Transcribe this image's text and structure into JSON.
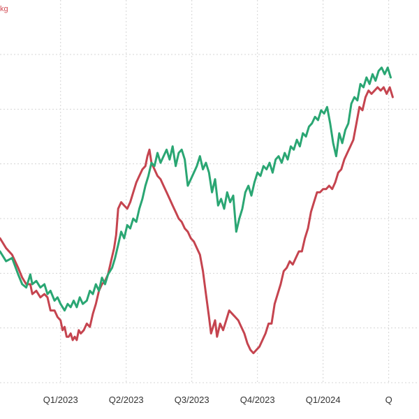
{
  "chart_data": {
    "type": "line",
    "unit_label": "kg",
    "grid": true,
    "y_gridline_count": 7,
    "x_ticks": [
      "Q1/2023",
      "Q2/2023",
      "Q3/2023",
      "Q4/2023",
      "Q1/2024",
      "Q"
    ],
    "x_range": [
      -60,
      355
    ],
    "y_range": [
      0,
      100
    ],
    "colors": {
      "green": "#2aa673",
      "red": "#c5444f",
      "unit": "#d24b54",
      "grid": "#d4d4d4"
    },
    "series": [
      {
        "color": "green",
        "points": [
          [
            -60,
            40
          ],
          [
            -54,
            37
          ],
          [
            -48,
            38
          ],
          [
            -42,
            33
          ],
          [
            -38,
            30
          ],
          [
            -34,
            29
          ],
          [
            -30,
            33
          ],
          [
            -28,
            30
          ],
          [
            -24,
            31
          ],
          [
            -20,
            29
          ],
          [
            -16,
            30
          ],
          [
            -13,
            27
          ],
          [
            -10,
            28
          ],
          [
            -6,
            25
          ],
          [
            -3,
            26
          ],
          [
            0,
            24
          ],
          [
            4,
            22
          ],
          [
            7,
            24
          ],
          [
            10,
            23
          ],
          [
            13,
            25
          ],
          [
            16,
            23
          ],
          [
            19,
            26
          ],
          [
            22,
            24
          ],
          [
            26,
            25
          ],
          [
            29,
            28
          ],
          [
            32,
            27
          ],
          [
            35,
            30
          ],
          [
            38,
            28
          ],
          [
            41,
            32
          ],
          [
            44,
            30
          ],
          [
            47,
            33
          ],
          [
            51,
            35
          ],
          [
            54,
            38
          ],
          [
            57,
            42
          ],
          [
            60,
            46
          ],
          [
            63,
            44
          ],
          [
            66,
            48
          ],
          [
            69,
            47
          ],
          [
            72,
            50
          ],
          [
            75,
            49
          ],
          [
            78,
            53
          ],
          [
            81,
            56
          ],
          [
            84,
            60
          ],
          [
            87,
            63
          ],
          [
            90,
            67
          ],
          [
            93,
            66
          ],
          [
            96,
            70
          ],
          [
            99,
            67
          ],
          [
            102,
            69
          ],
          [
            105,
            71
          ],
          [
            108,
            68
          ],
          [
            111,
            72
          ],
          [
            114,
            66
          ],
          [
            117,
            70
          ],
          [
            120,
            71
          ],
          [
            123,
            68
          ],
          [
            126,
            60
          ],
          [
            129,
            62
          ],
          [
            132,
            64
          ],
          [
            135,
            66
          ],
          [
            138,
            69
          ],
          [
            141,
            65
          ],
          [
            144,
            67
          ],
          [
            147,
            64
          ],
          [
            150,
            58
          ],
          [
            153,
            62
          ],
          [
            156,
            54
          ],
          [
            159,
            56
          ],
          [
            162,
            53
          ],
          [
            165,
            58
          ],
          [
            168,
            55
          ],
          [
            171,
            57
          ],
          [
            174,
            46
          ],
          [
            177,
            50
          ],
          [
            180,
            53
          ],
          [
            183,
            58
          ],
          [
            186,
            60
          ],
          [
            189,
            57
          ],
          [
            192,
            61
          ],
          [
            195,
            64
          ],
          [
            198,
            63
          ],
          [
            201,
            66
          ],
          [
            204,
            65
          ],
          [
            207,
            67
          ],
          [
            210,
            64
          ],
          [
            213,
            68
          ],
          [
            216,
            69
          ],
          [
            219,
            67
          ],
          [
            222,
            70
          ],
          [
            225,
            68
          ],
          [
            228,
            72
          ],
          [
            231,
            71
          ],
          [
            234,
            74
          ],
          [
            237,
            72
          ],
          [
            240,
            76
          ],
          [
            243,
            75
          ],
          [
            246,
            78
          ],
          [
            249,
            79
          ],
          [
            252,
            81
          ],
          [
            255,
            80
          ],
          [
            258,
            83
          ],
          [
            261,
            82
          ],
          [
            264,
            84
          ],
          [
            267,
            79
          ],
          [
            270,
            73
          ],
          [
            273,
            69
          ],
          [
            276,
            76
          ],
          [
            279,
            73
          ],
          [
            282,
            77
          ],
          [
            285,
            79
          ],
          [
            288,
            85
          ],
          [
            291,
            87
          ],
          [
            294,
            86
          ],
          [
            297,
            91
          ],
          [
            300,
            90
          ],
          [
            303,
            93
          ],
          [
            306,
            91
          ],
          [
            309,
            94
          ],
          [
            312,
            92
          ],
          [
            315,
            95
          ],
          [
            318,
            96
          ],
          [
            321,
            94
          ],
          [
            324,
            96
          ],
          [
            327,
            93
          ]
        ]
      },
      {
        "color": "red",
        "points": [
          [
            -60,
            44
          ],
          [
            -54,
            41
          ],
          [
            -48,
            39
          ],
          [
            -42,
            35
          ],
          [
            -38,
            32
          ],
          [
            -34,
            30
          ],
          [
            -30,
            30
          ],
          [
            -28,
            27
          ],
          [
            -24,
            28
          ],
          [
            -20,
            26
          ],
          [
            -16,
            27
          ],
          [
            -13,
            26
          ],
          [
            -10,
            22
          ],
          [
            -6,
            22
          ],
          [
            -3,
            20
          ],
          [
            0,
            19
          ],
          [
            2,
            16
          ],
          [
            4,
            17
          ],
          [
            6,
            14
          ],
          [
            8,
            14
          ],
          [
            10,
            15
          ],
          [
            12,
            13
          ],
          [
            14,
            14
          ],
          [
            16,
            13
          ],
          [
            18,
            16
          ],
          [
            20,
            15
          ],
          [
            23,
            16
          ],
          [
            26,
            18
          ],
          [
            29,
            17
          ],
          [
            32,
            21
          ],
          [
            35,
            24
          ],
          [
            38,
            28
          ],
          [
            41,
            30
          ],
          [
            44,
            31
          ],
          [
            47,
            33
          ],
          [
            50,
            37
          ],
          [
            53,
            41
          ],
          [
            55,
            45
          ],
          [
            57,
            53
          ],
          [
            60,
            55
          ],
          [
            63,
            54
          ],
          [
            66,
            53
          ],
          [
            69,
            55
          ],
          [
            72,
            58
          ],
          [
            75,
            61
          ],
          [
            78,
            63
          ],
          [
            81,
            65
          ],
          [
            84,
            66
          ],
          [
            86,
            69
          ],
          [
            88,
            71
          ],
          [
            90,
            67
          ],
          [
            93,
            65
          ],
          [
            96,
            63
          ],
          [
            99,
            62
          ],
          [
            102,
            60
          ],
          [
            105,
            58
          ],
          [
            108,
            56
          ],
          [
            111,
            54
          ],
          [
            114,
            52
          ],
          [
            117,
            50
          ],
          [
            120,
            49
          ],
          [
            123,
            47
          ],
          [
            126,
            46
          ],
          [
            129,
            44
          ],
          [
            132,
            43
          ],
          [
            135,
            41
          ],
          [
            138,
            39
          ],
          [
            141,
            34
          ],
          [
            144,
            27
          ],
          [
            147,
            20
          ],
          [
            149,
            15
          ],
          [
            151,
            17
          ],
          [
            153,
            19
          ],
          [
            155,
            14
          ],
          [
            158,
            18
          ],
          [
            161,
            16
          ],
          [
            164,
            19
          ],
          [
            167,
            22
          ],
          [
            170,
            21
          ],
          [
            173,
            20
          ],
          [
            176,
            19
          ],
          [
            179,
            17
          ],
          [
            182,
            15
          ],
          [
            185,
            12
          ],
          [
            188,
            10
          ],
          [
            191,
            9
          ],
          [
            194,
            10
          ],
          [
            197,
            11
          ],
          [
            200,
            13
          ],
          [
            203,
            15
          ],
          [
            206,
            18
          ],
          [
            209,
            18
          ],
          [
            212,
            24
          ],
          [
            215,
            27
          ],
          [
            218,
            30
          ],
          [
            221,
            34
          ],
          [
            224,
            35
          ],
          [
            227,
            37
          ],
          [
            230,
            36
          ],
          [
            233,
            38
          ],
          [
            236,
            40
          ],
          [
            239,
            40
          ],
          [
            242,
            44
          ],
          [
            245,
            47
          ],
          [
            248,
            52
          ],
          [
            251,
            55
          ],
          [
            254,
            58
          ],
          [
            257,
            58
          ],
          [
            260,
            59
          ],
          [
            263,
            59
          ],
          [
            266,
            60
          ],
          [
            269,
            59
          ],
          [
            272,
            61
          ],
          [
            275,
            64
          ],
          [
            278,
            65
          ],
          [
            281,
            68
          ],
          [
            284,
            70
          ],
          [
            287,
            72
          ],
          [
            290,
            74
          ],
          [
            293,
            79
          ],
          [
            296,
            84
          ],
          [
            299,
            83
          ],
          [
            302,
            87
          ],
          [
            305,
            89
          ],
          [
            308,
            88
          ],
          [
            311,
            89
          ],
          [
            314,
            90
          ],
          [
            317,
            89
          ],
          [
            320,
            90
          ],
          [
            323,
            88
          ],
          [
            326,
            90
          ],
          [
            329,
            87
          ]
        ]
      }
    ]
  }
}
